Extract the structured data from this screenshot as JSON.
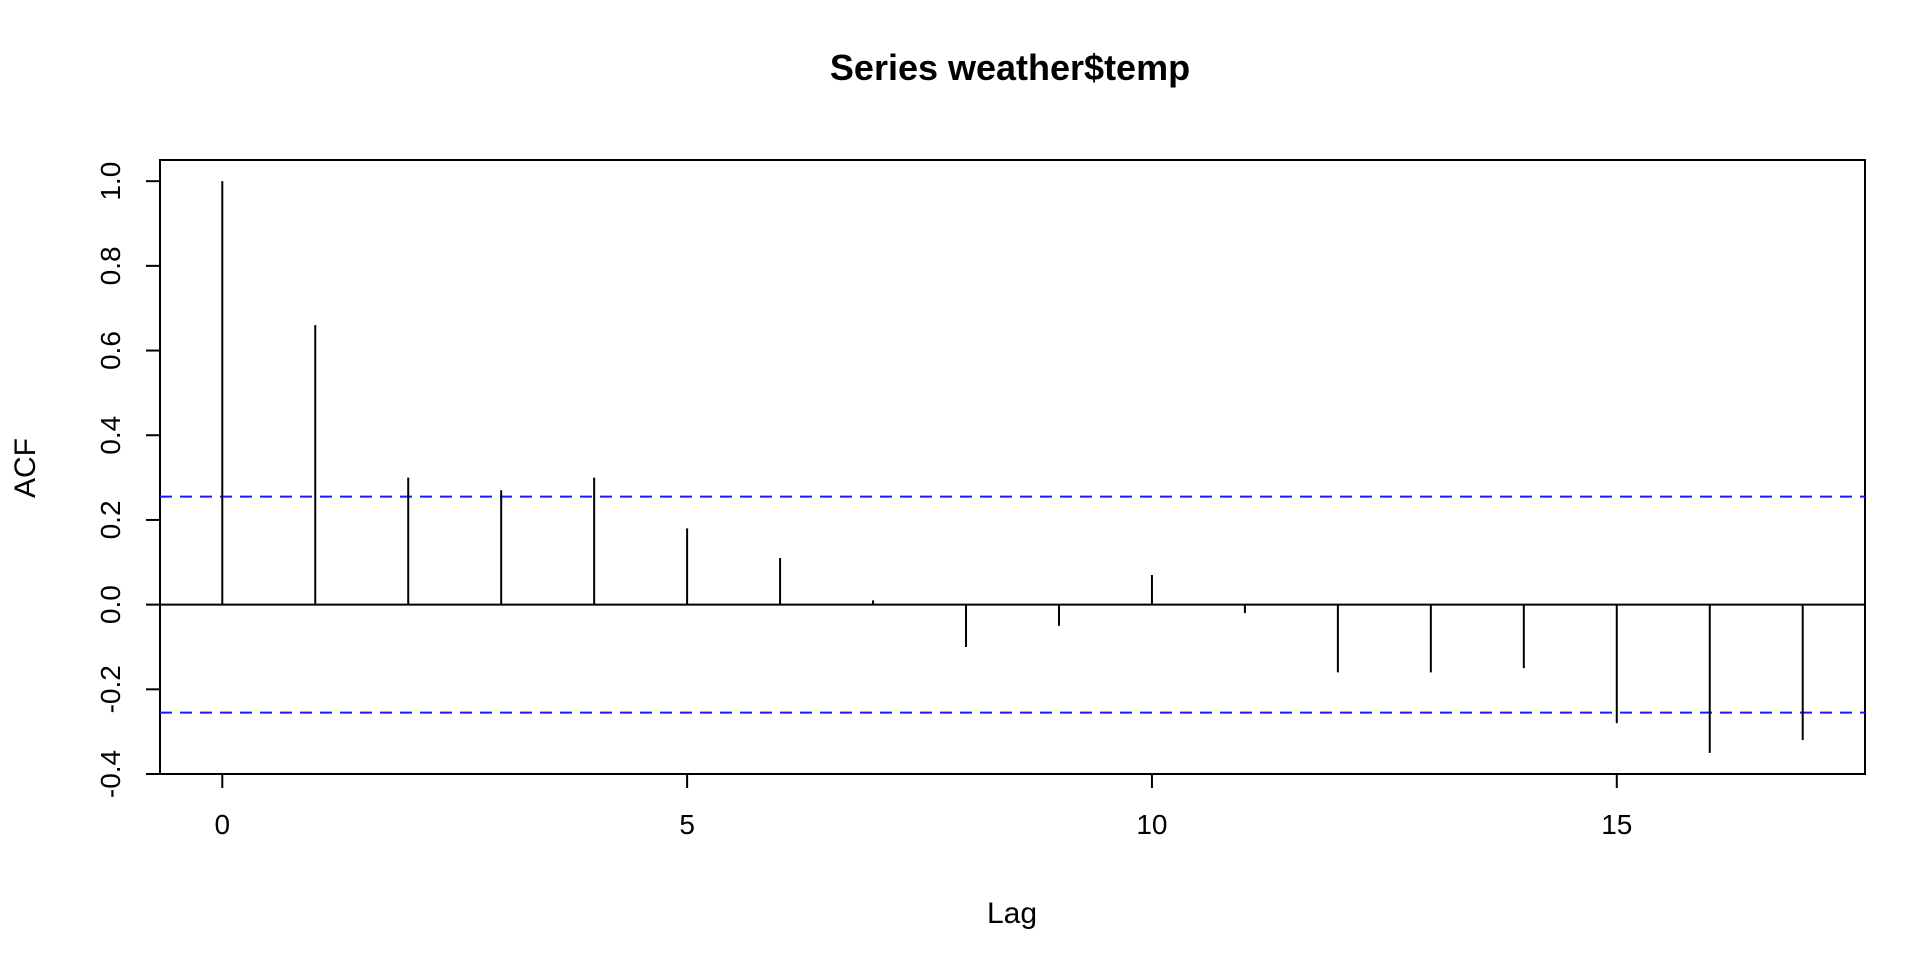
{
  "chart_data": {
    "type": "bar",
    "title": "Series  weather$temp",
    "xlabel": "Lag",
    "ylabel": "ACF",
    "x": [
      0,
      1,
      2,
      3,
      4,
      5,
      6,
      7,
      8,
      9,
      10,
      11,
      12,
      13,
      14,
      15,
      16,
      17
    ],
    "values": [
      1.0,
      0.66,
      0.3,
      0.27,
      0.3,
      0.18,
      0.11,
      0.01,
      -0.1,
      -0.05,
      0.07,
      -0.02,
      -0.16,
      -0.16,
      -0.15,
      -0.28,
      -0.35,
      -0.32
    ],
    "xlim": [
      -0.67,
      17.67
    ],
    "ylim": [
      -0.4,
      1.05
    ],
    "x_ticks": [
      0,
      5,
      10,
      15
    ],
    "x_tick_labels": [
      "0",
      "5",
      "10",
      "15"
    ],
    "y_ticks": [
      -0.4,
      -0.2,
      0.0,
      0.2,
      0.4,
      0.6,
      0.8,
      1.0
    ],
    "y_tick_labels": [
      "-0.4",
      "-0.2",
      "0.0",
      "0.2",
      "0.4",
      "0.6",
      "0.8",
      "1.0"
    ],
    "confidence_bound": 0.255,
    "ci_color": "#1a1aff",
    "spike_color": "#000000",
    "grid": false
  }
}
